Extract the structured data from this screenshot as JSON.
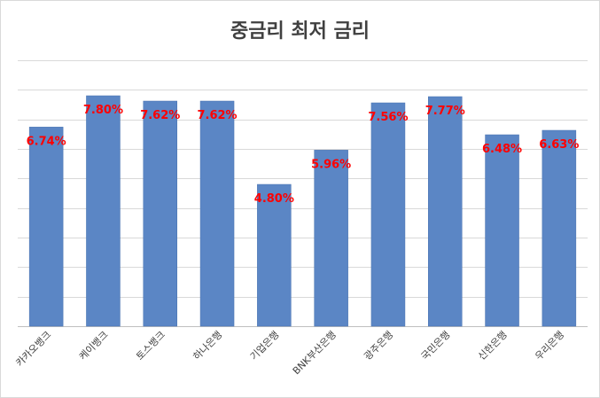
{
  "chart_data": {
    "type": "bar",
    "title": "중금리 최저 금리",
    "categories": [
      "카카오뱅크",
      "케이뱅크",
      "토스뱅크",
      "하나은행",
      "기업은행",
      "BNK부산은행",
      "광주은행",
      "국민은행",
      "신한은행",
      "우리은행"
    ],
    "values": [
      6.74,
      7.8,
      7.62,
      7.62,
      4.8,
      5.96,
      7.56,
      7.77,
      6.48,
      6.63
    ],
    "data_labels": [
      "6.74%",
      "7.80%",
      "7.62%",
      "7.62%",
      "4.80%",
      "5.96%",
      "7.56%",
      "7.77%",
      "6.48%",
      "6.63%"
    ],
    "xlabel": "",
    "ylabel": "",
    "ylim": [
      0,
      9
    ],
    "y_tick_step": 1,
    "grid": true,
    "legend": "none",
    "colors": {
      "bar": "#5b86c5",
      "data_label": "#ff0000",
      "grid": "#d9d9d9",
      "title": "#404040"
    }
  }
}
